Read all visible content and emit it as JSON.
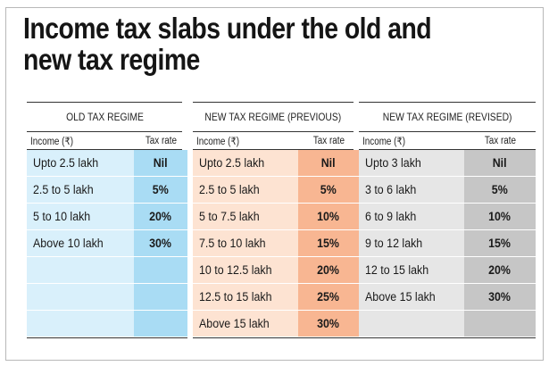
{
  "title_line1": "Income tax slabs under the old and",
  "title_line2": "new tax regime",
  "regimes": [
    {
      "name": "OLD TAX REGIME",
      "income_header": "Income (₹)",
      "rate_header": "Tax rate",
      "rows": [
        {
          "income": "Upto 2.5 lakh",
          "rate": "Nil"
        },
        {
          "income": "2.5 to 5 lakh",
          "rate": "5%"
        },
        {
          "income": "5 to 10 lakh",
          "rate": "20%"
        },
        {
          "income": "Above 10 lakh",
          "rate": "30%"
        },
        {
          "income": "",
          "rate": ""
        },
        {
          "income": "",
          "rate": ""
        },
        {
          "income": "",
          "rate": ""
        }
      ]
    },
    {
      "name": "NEW TAX REGIME (PREVIOUS)",
      "income_header": "Income (₹)",
      "rate_header": "Tax rate",
      "rows": [
        {
          "income": "Upto 2.5 lakh",
          "rate": "Nil"
        },
        {
          "income": "2.5 to 5 lakh",
          "rate": "5%"
        },
        {
          "income": "5 to 7.5 lakh",
          "rate": "10%"
        },
        {
          "income": "7.5 to 10 lakh",
          "rate": "15%"
        },
        {
          "income": "10 to 12.5 lakh",
          "rate": "20%"
        },
        {
          "income": "12.5 to 15 lakh",
          "rate": "25%"
        },
        {
          "income": "Above 15 lakh",
          "rate": "30%"
        }
      ]
    },
    {
      "name": "NEW TAX REGIME (REVISED)",
      "income_header": "Income (₹)",
      "rate_header": "Tax rate",
      "rows": [
        {
          "income": "Upto 3 lakh",
          "rate": "Nil"
        },
        {
          "income": "3 to 6 lakh",
          "rate": "5%"
        },
        {
          "income": "6 to 9 lakh",
          "rate": "10%"
        },
        {
          "income": "9 to 12 lakh",
          "rate": "15%"
        },
        {
          "income": "12 to 15 lakh",
          "rate": "20%"
        },
        {
          "income": "Above 15 lakh",
          "rate": "30%"
        },
        {
          "income": "",
          "rate": ""
        }
      ]
    }
  ],
  "colors": {
    "old_income_bg": "#d9f0fb",
    "old_rate_bg": "#a9dcf4",
    "previous_income_bg": "#fde3d2",
    "previous_rate_bg": "#f8b692",
    "revised_income_bg": "#e6e6e6",
    "revised_rate_bg": "#c6c6c6"
  }
}
